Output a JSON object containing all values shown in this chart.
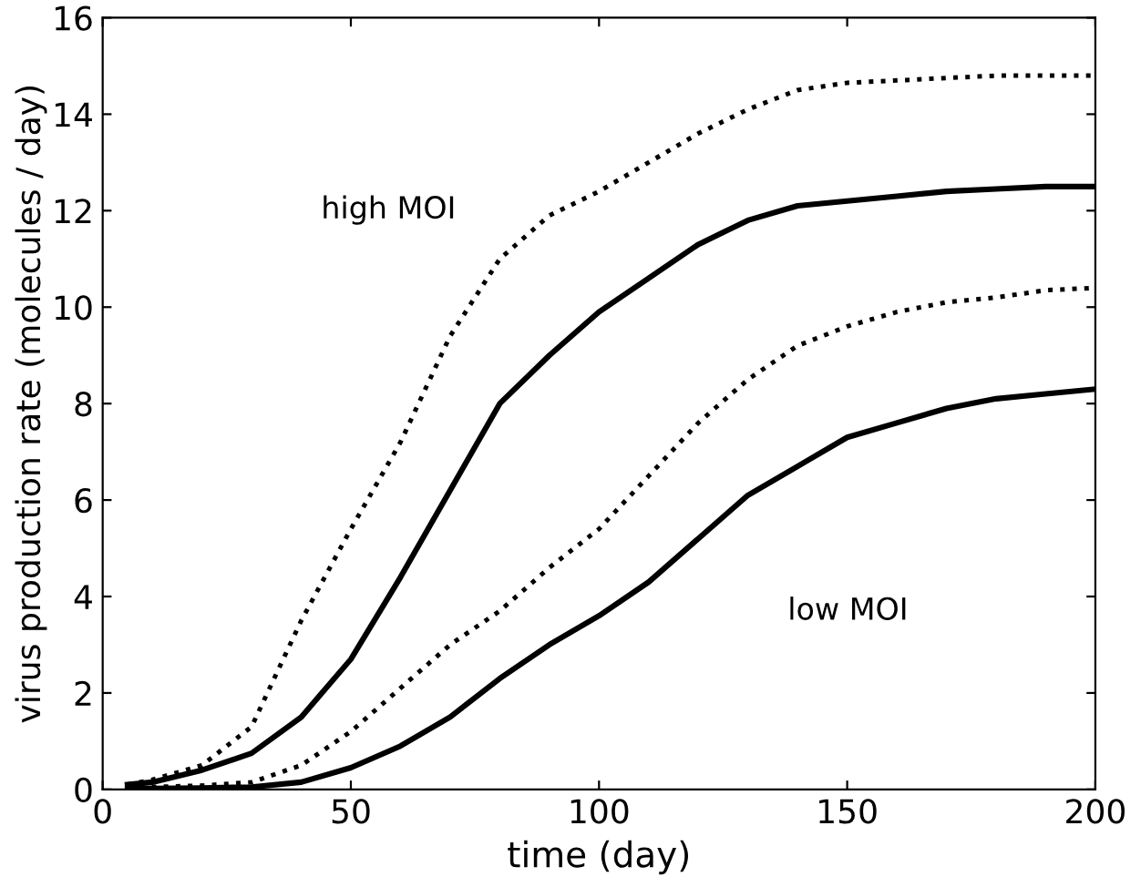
{
  "chart_data": {
    "type": "line",
    "xlabel": "time (day)",
    "ylabel": "virus production rate (molecules / day)",
    "x": [
      5,
      10,
      20,
      30,
      40,
      50,
      60,
      70,
      80,
      90,
      100,
      110,
      120,
      130,
      140,
      150,
      160,
      170,
      180,
      190,
      200
    ],
    "series": [
      {
        "color": "#000000",
        "line_style": "dotted",
        "values": [
          0.1,
          0.2,
          0.5,
          1.3,
          3.5,
          5.4,
          7.2,
          9.4,
          11.0,
          11.9,
          12.4,
          13.0,
          13.6,
          14.1,
          14.5,
          14.65,
          14.7,
          14.75,
          14.8,
          14.8,
          14.8
        ]
      },
      {
        "color": "#000000",
        "line_style": "solid",
        "values": [
          0.1,
          0.15,
          0.4,
          0.75,
          1.5,
          2.7,
          4.4,
          6.2,
          8.0,
          9.0,
          9.9,
          10.6,
          11.3,
          11.8,
          12.1,
          12.2,
          12.3,
          12.4,
          12.45,
          12.5,
          12.5
        ]
      },
      {
        "color": "#000000",
        "line_style": "dotted",
        "values": [
          0.05,
          0.05,
          0.08,
          0.15,
          0.5,
          1.2,
          2.1,
          3.0,
          3.7,
          4.6,
          5.4,
          6.5,
          7.6,
          8.5,
          9.2,
          9.6,
          9.9,
          10.1,
          10.2,
          10.35,
          10.4
        ]
      },
      {
        "color": "#000000",
        "line_style": "solid",
        "values": [
          0.02,
          0.02,
          0.03,
          0.05,
          0.15,
          0.45,
          0.9,
          1.5,
          2.3,
          3.0,
          3.6,
          4.3,
          5.2,
          6.1,
          6.7,
          7.3,
          7.6,
          7.9,
          8.1,
          8.2,
          8.3
        ]
      }
    ],
    "annotations": [
      "high MOI",
      "low MOI"
    ],
    "xlim": [
      0,
      200
    ],
    "ylim": [
      0,
      16
    ],
    "xticks": [
      0,
      50,
      100,
      150,
      200
    ],
    "yticks": [
      0,
      2,
      4,
      6,
      8,
      10,
      12,
      14,
      16
    ],
    "grid": false,
    "legend": false,
    "marker": "none"
  }
}
